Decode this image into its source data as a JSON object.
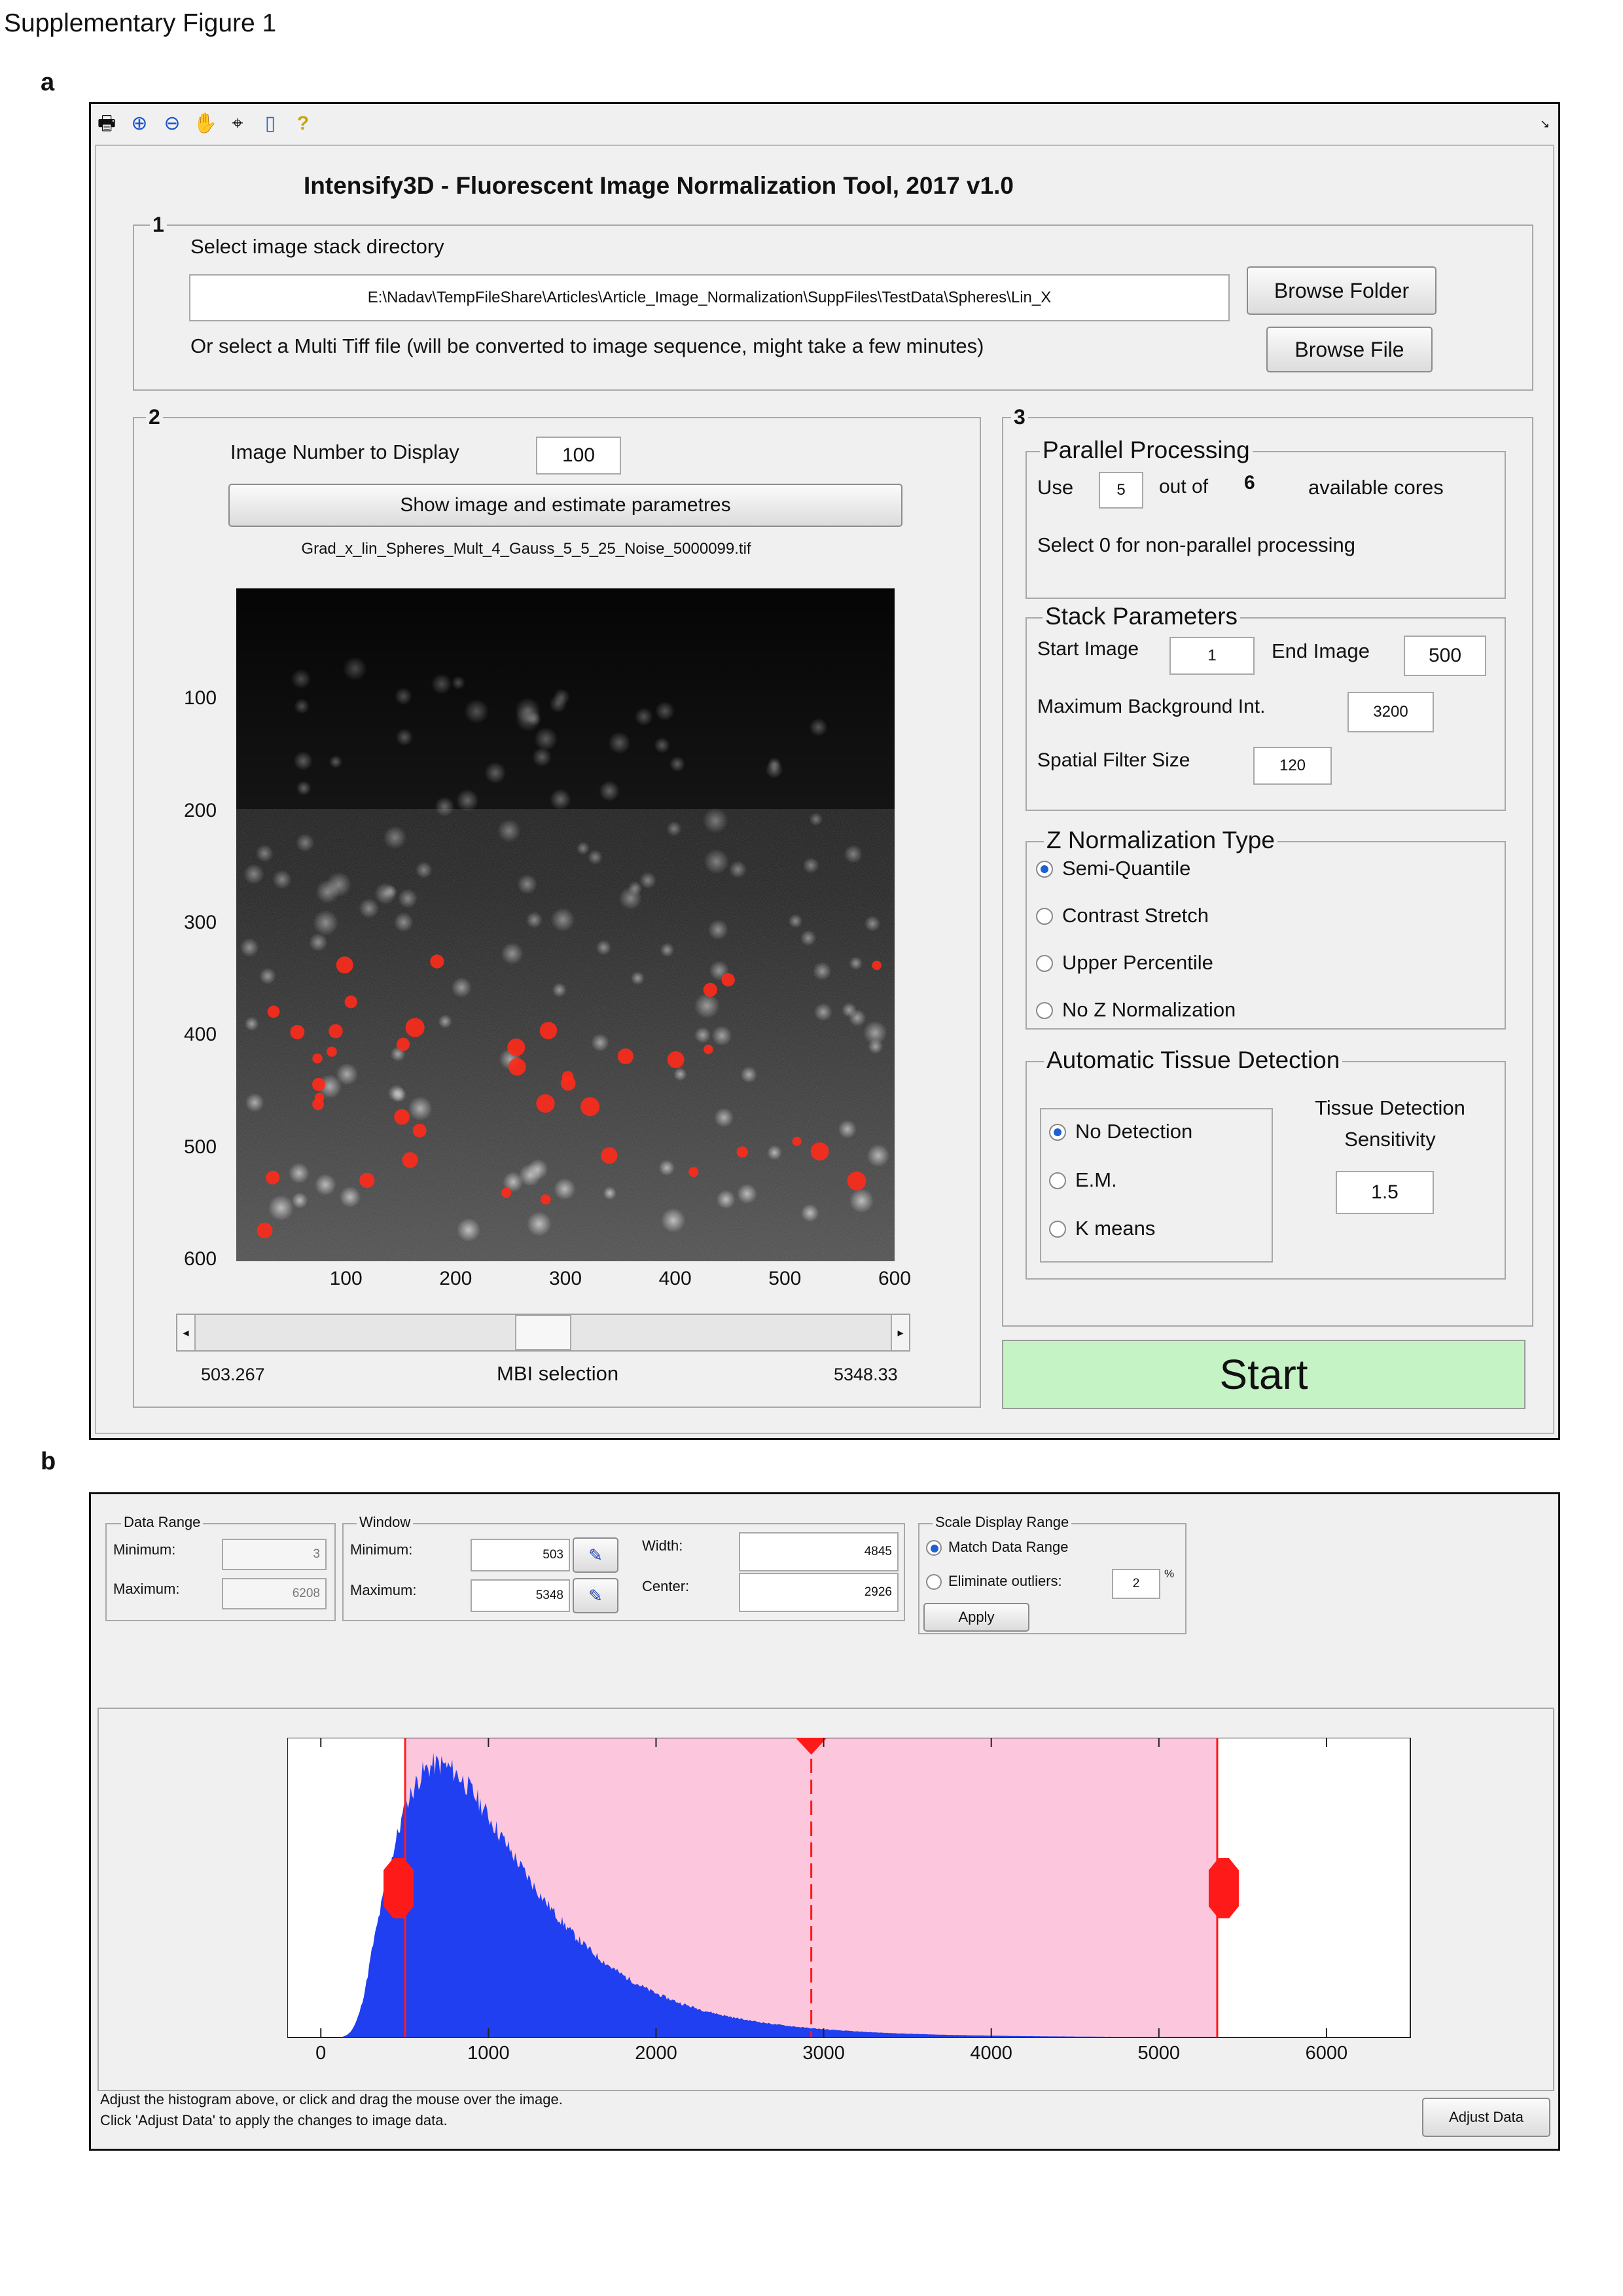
{
  "figure": {
    "title": "Supplementary Figure 1",
    "panel_a": "a",
    "panel_b": "b"
  },
  "toolbar": {
    "icons": [
      "print-icon",
      "zoom-in-icon",
      "zoom-out-icon",
      "pan-hand-icon",
      "data-cursor-icon",
      "colorbar-icon",
      "help-icon"
    ]
  },
  "app": {
    "title": "Intensify3D - Fluorescent Image Normalization Tool,  2017 v1.0"
  },
  "section1": {
    "number": "1",
    "prompt": "Select image stack directory",
    "path": "E:\\Nadav\\TempFileShare\\Articles\\Article_Image_Normalization\\SuppFiles\\TestData\\Spheres\\Lin_X",
    "browse_folder": "Browse Folder",
    "multi_tiff_prompt": "Or select a Multi Tiff file (will be converted to image sequence, might take a few minutes)",
    "browse_file": "Browse File"
  },
  "section2": {
    "number": "2",
    "image_number_label": "Image Number to Display",
    "image_number": "100",
    "show_button": "Show image and estimate parametres",
    "filename": "Grad_x_lin_Spheres_Mult_4_Gauss_5_5_25_Noise_5000099.tif",
    "y_ticks": [
      "100",
      "200",
      "300",
      "400",
      "500",
      "600"
    ],
    "x_ticks": [
      "100",
      "200",
      "300",
      "400",
      "500",
      "600"
    ],
    "slider_min": "503.267",
    "slider_label": "MBI selection",
    "slider_max": "5348.33",
    "slider_position": 0.5
  },
  "section3": {
    "number": "3",
    "parallel": {
      "title": "Parallel Processing",
      "use_label": "Use",
      "use_value": "5",
      "out_of_label": "out of",
      "cores": "6",
      "available_label": "available cores",
      "hint": "Select 0 for non-parallel processing"
    },
    "stack": {
      "title": "Stack Parameters",
      "start_label": "Start Image",
      "start_value": "1",
      "end_label": "End Image",
      "end_value": "500",
      "max_bg_label": "Maximum Background Int.",
      "max_bg_value": "3200",
      "spatial_label": "Spatial Filter Size",
      "spatial_value": "120"
    },
    "znorm": {
      "title": "Z Normalization Type",
      "options": [
        "Semi-Quantile",
        "Contrast Stretch",
        "Upper Percentile",
        "No Z Normalization"
      ],
      "selected": 0
    },
    "tissue": {
      "title": "Automatic Tissue Detection",
      "options": [
        "No Detection",
        "E.M.",
        "K means"
      ],
      "selected": 0,
      "sensitivity_label_1": "Tissue Detection",
      "sensitivity_label_2": "Sensitivity",
      "sensitivity_value": "1.5"
    },
    "start_button": "Start",
    "start_color": "#c6f3c6"
  },
  "panel_b": {
    "data_range": {
      "title": "Data Range",
      "min_label": "Minimum:",
      "min_value": "3",
      "max_label": "Maximum:",
      "max_value": "6208"
    },
    "window": {
      "title": "Window",
      "min_label": "Minimum:",
      "min_value": "503",
      "max_label": "Maximum:",
      "max_value": "5348",
      "width_label": "Width:",
      "width_value": "4845",
      "center_label": "Center:",
      "center_value": "2926"
    },
    "scale": {
      "title": "Scale Display Range",
      "match_label": "Match Data Range",
      "eliminate_label": "Eliminate outliers:",
      "outlier_value": "2",
      "percent": "%",
      "apply": "Apply",
      "selected": 0
    },
    "histogram": {
      "x_ticks": [
        "0",
        "1000",
        "2000",
        "3000",
        "4000",
        "5000",
        "6000"
      ],
      "xlim": [
        -200,
        6500
      ],
      "window_min": 503,
      "window_max": 5348,
      "center": 2926,
      "bar_color": "#1f3ff0",
      "window_color": "#fcc6dc",
      "marker_color": "#ff1a1a"
    },
    "hint_1": "Adjust the histogram above, or click and drag the mouse over the image.",
    "hint_2": "Click 'Adjust Data' to apply the changes to image data.",
    "adjust_button": "Adjust Data"
  }
}
